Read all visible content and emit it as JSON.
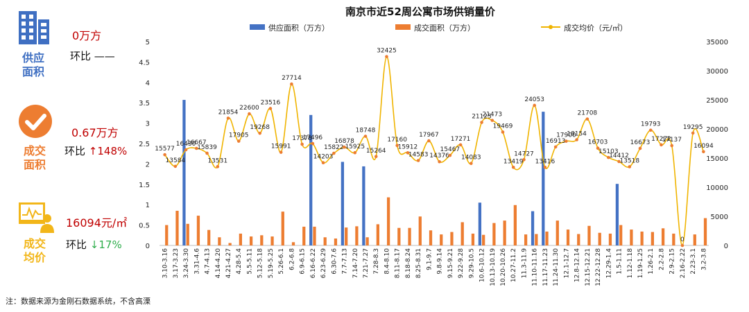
{
  "colors": {
    "supply": "#4472C4",
    "deal": "#ED7D31",
    "price": "#F0B400",
    "blue_kpi": "#3F6FC2",
    "orange_kpi": "#ED7D31",
    "yellow_kpi": "#F2B619",
    "red_value": "#C00000",
    "green_down": "#2EAD4B"
  },
  "kpis": {
    "supply": {
      "label_line1": "供应",
      "label_line2": "面积",
      "value": "0万方",
      "change_text": "环比 ——",
      "icon": "building-icon"
    },
    "deal": {
      "label_line1": "成交",
      "label_line2": "面积",
      "value": "0.67万方",
      "change_prefix": "环比 ",
      "arrow": "↑",
      "change_value": "148%",
      "icon": "checkmark-icon"
    },
    "price": {
      "label_line1": "成交",
      "label_line2": "均价",
      "value": "16094元/㎡",
      "change_prefix": "环比 ",
      "arrow": "↓",
      "change_value": "17%",
      "icon": "presenter-chart-icon"
    }
  },
  "footnote": "注：数据来源为金刚石数据系统，不含高溧",
  "chart_data": {
    "type": "bar",
    "title": "南京市近52周公寓市场供销量价",
    "legend_position": "top",
    "categories": [
      "3.10-3.16",
      "3.17-3.23",
      "3.24-3.30",
      "3.31-4.6",
      "4.7-4.13",
      "4.14-4.20",
      "4.21-4.27",
      "4.28-5.4",
      "5.5-5.11",
      "5.12-5.18",
      "5.19-5.25",
      "5.26-6.1",
      "6.2-6.8",
      "6.9-6.15",
      "6.16-6.22",
      "6.23-6.29",
      "6.30-7.6",
      "7.7-7.13",
      "7.14-7.20",
      "7.21-7.27",
      "7.28-8.3",
      "8.4-8.10",
      "8.11-8.17",
      "8.18-8.24",
      "8.25-8.31",
      "9.1-9.7",
      "9.8-9.14",
      "9.15-9.21",
      "9.22-9.28",
      "9.29-10.5",
      "10.6-10.12",
      "10.13-10.19",
      "10.20-10.26",
      "10.27-11.2",
      "11.3-11.9",
      "11.10-11.16",
      "11.17-11.23",
      "11.24-11.30",
      "12.1-12.7",
      "12.8-12.14",
      "12.15-12.21",
      "12.22-12.28",
      "12.29-1.4",
      "1.5-1.11",
      "1.12-1.18",
      "1.19-1.25",
      "1.26-2.1",
      "2.2-2.8",
      "2.9-2.15",
      "2.16-2.22",
      "2.23-3.1",
      "3.2-3.8"
    ],
    "series": [
      {
        "name": "供应面积（万方）",
        "type": "bar",
        "axis": "left",
        "values": [
          0,
          0,
          3.57,
          0,
          0,
          0,
          0,
          0,
          0,
          0,
          0,
          0,
          0,
          0,
          3.2,
          0,
          0,
          2.05,
          0,
          1.94,
          0,
          0,
          0,
          0,
          0,
          0,
          0,
          0,
          0,
          0,
          1.05,
          0,
          0,
          0,
          0,
          0.84,
          3.28,
          0,
          0,
          0,
          0,
          0,
          0,
          1.51,
          0,
          0,
          0,
          0,
          0,
          0,
          0,
          0
        ]
      },
      {
        "name": "成交面积（万方）",
        "type": "bar",
        "axis": "left",
        "values": [
          0.5,
          0.85,
          0.53,
          0.73,
          0.38,
          0.2,
          0.06,
          0.29,
          0.22,
          0.25,
          0.22,
          0.83,
          0.08,
          0.46,
          0.46,
          0.2,
          0.17,
          0.44,
          0.47,
          0.2,
          0.52,
          1.18,
          0.43,
          0.43,
          0.71,
          0.37,
          0.27,
          0.33,
          0.57,
          0.29,
          0.26,
          0.55,
          0.61,
          0.99,
          0.27,
          0.28,
          0.34,
          0.61,
          0.39,
          0.28,
          0.48,
          0.31,
          0.29,
          0.5,
          0.39,
          0.34,
          0.33,
          0.42,
          0.29,
          0,
          0.27,
          0.67
        ]
      },
      {
        "name": "成交均价（元/㎡）",
        "type": "line",
        "axis": "right",
        "smooth": true,
        "values": [
          15577,
          13584,
          16430,
          16667,
          15839,
          13531,
          21854,
          17905,
          22600,
          19268,
          23516,
          15991,
          27714,
          17378,
          17496,
          14203,
          15822,
          16878,
          15925,
          18748,
          15264,
          32425,
          17160,
          15912,
          14583,
          17967,
          14376,
          15467,
          17271,
          14083,
          21125,
          21473,
          19469,
          13419,
          14727,
          24053,
          13416,
          16913,
          17900,
          18154,
          21708,
          16703,
          15103,
          14412,
          13518,
          16673,
          19793,
          17272,
          17137,
          0,
          19295,
          16094
        ]
      }
    ],
    "left_axis": {
      "ylim": [
        0,
        5
      ],
      "ticks": [
        "0",
        "0.5",
        "1",
        "1.5",
        "2",
        "2.5",
        "3",
        "3.5",
        "4",
        "4.5",
        "5"
      ]
    },
    "right_axis": {
      "ylim": [
        0,
        35000
      ],
      "ticks": [
        "0",
        "5000",
        "10000",
        "15000",
        "20000",
        "25000",
        "30000",
        "35000"
      ]
    }
  }
}
